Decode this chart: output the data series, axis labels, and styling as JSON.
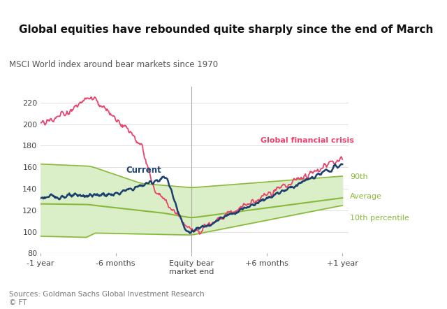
{
  "title": "Global equities have rebounded quite sharply since the end of March",
  "subtitle": "MSCI World index around bear markets since 1970",
  "source": "Sources: Goldman Sachs Global Investment Research\n© FT",
  "xlabel_ticks": [
    -12,
    -6,
    0,
    6,
    12
  ],
  "xlabel_labels": [
    "-1 year",
    "-6 months",
    "Equity bear\nmarket end",
    "+6 months",
    "+1 year"
  ],
  "ylim": [
    80,
    235
  ],
  "yticks": [
    80,
    100,
    120,
    140,
    160,
    180,
    200,
    220
  ],
  "background_color": "#ffffff",
  "grid_color": "#e0e0e0",
  "band_fill_color": "#daeec7",
  "band_edge_color": "#8ab83a",
  "avg_color": "#8ab83a",
  "current_color": "#1b3f6e",
  "gfc_color": "#e8446e",
  "label_90th": "90th",
  "label_avg": "Average",
  "label_10th": "10th percentile",
  "label_current": "Current",
  "label_gfc": "Global financial crisis"
}
